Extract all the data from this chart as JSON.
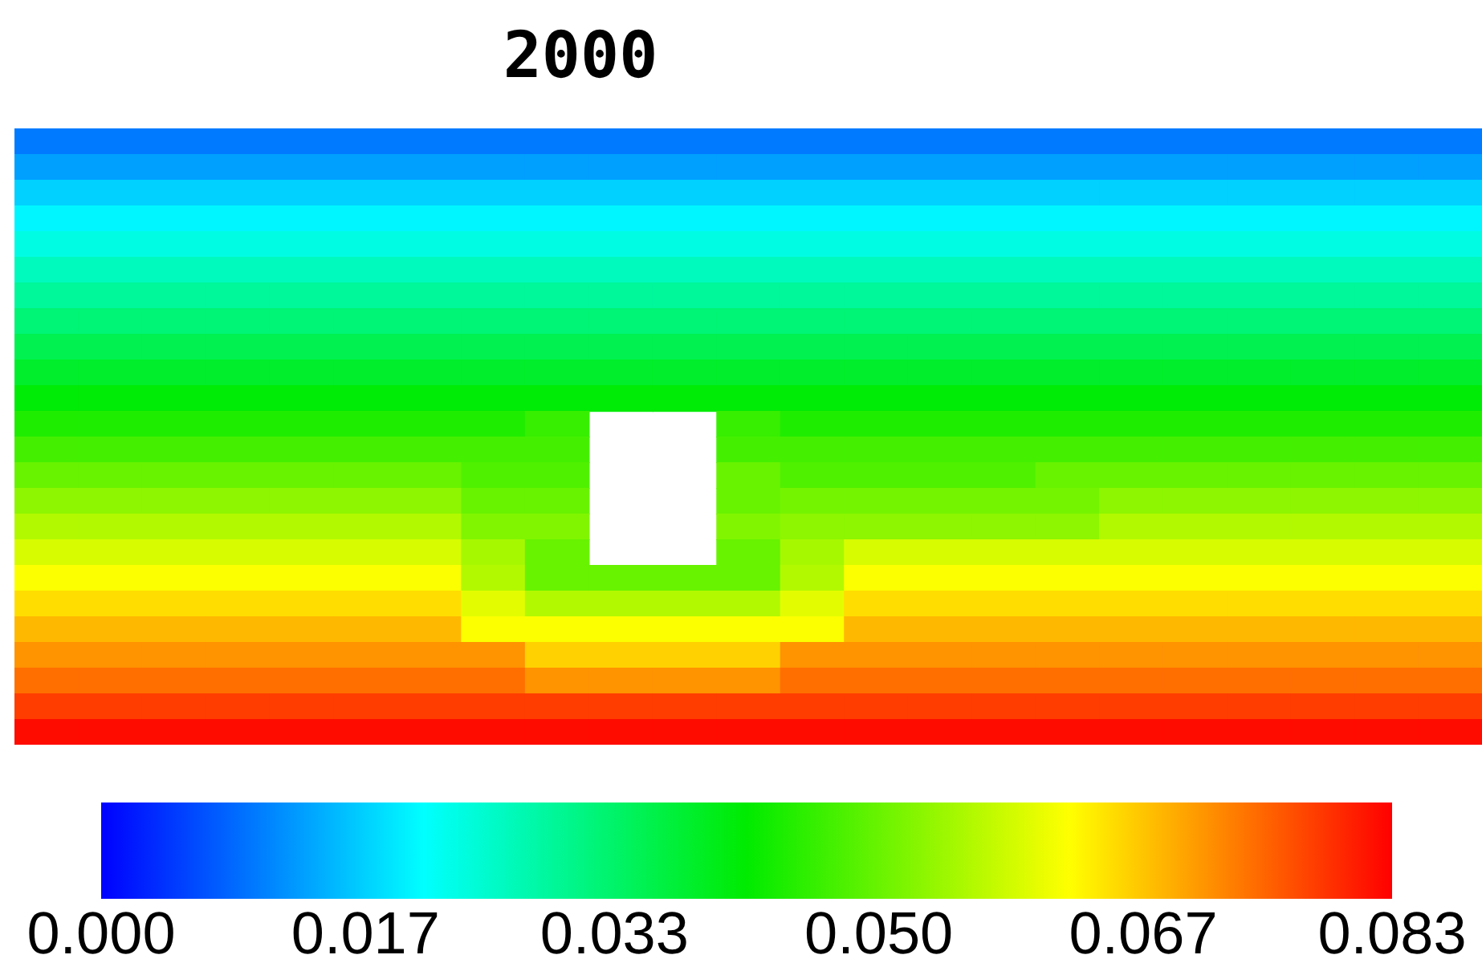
{
  "chart_data": {
    "type": "heatmap",
    "title": "2000",
    "tick_labels": false,
    "categories": [
      null,
      null,
      null,
      null,
      null,
      null,
      null,
      null,
      null,
      null,
      null,
      null,
      null,
      null,
      null,
      null,
      null,
      null,
      null,
      null,
      null,
      null,
      null
    ],
    "y_categories": [
      null,
      null,
      null,
      null,
      null,
      null,
      null,
      null,
      null,
      null,
      null,
      null,
      null,
      null,
      null,
      null,
      null,
      null,
      null,
      null,
      null,
      null,
      null,
      null
    ],
    "cells": [
      [
        0.01,
        0.01,
        0.01,
        0.01,
        0.01,
        0.01,
        0.01,
        0.01,
        0.01,
        0.01,
        0.01,
        0.01,
        0.01,
        0.01,
        0.01,
        0.01,
        0.01,
        0.01,
        0.01,
        0.01,
        0.01,
        0.01,
        0.01
      ],
      [
        0.013,
        0.013,
        0.013,
        0.013,
        0.013,
        0.013,
        0.013,
        0.013,
        0.013,
        0.013,
        0.013,
        0.013,
        0.013,
        0.013,
        0.013,
        0.013,
        0.013,
        0.013,
        0.013,
        0.013,
        0.013,
        0.013,
        0.013
      ],
      [
        0.017,
        0.017,
        0.017,
        0.017,
        0.017,
        0.017,
        0.017,
        0.017,
        0.017,
        0.017,
        0.017,
        0.017,
        0.017,
        0.017,
        0.017,
        0.017,
        0.017,
        0.017,
        0.017,
        0.017,
        0.017,
        0.017,
        0.017
      ],
      [
        0.02,
        0.02,
        0.02,
        0.02,
        0.02,
        0.02,
        0.02,
        0.02,
        0.02,
        0.02,
        0.02,
        0.02,
        0.02,
        0.02,
        0.02,
        0.02,
        0.02,
        0.02,
        0.02,
        0.02,
        0.02,
        0.02,
        0.02
      ],
      [
        0.023,
        0.023,
        0.023,
        0.023,
        0.023,
        0.023,
        0.023,
        0.023,
        0.023,
        0.023,
        0.023,
        0.023,
        0.023,
        0.023,
        0.023,
        0.023,
        0.023,
        0.023,
        0.023,
        0.023,
        0.023,
        0.023,
        0.023
      ],
      [
        0.026,
        0.026,
        0.026,
        0.026,
        0.026,
        0.026,
        0.026,
        0.026,
        0.026,
        0.026,
        0.026,
        0.026,
        0.026,
        0.026,
        0.026,
        0.026,
        0.026,
        0.026,
        0.026,
        0.026,
        0.026,
        0.026,
        0.026
      ],
      [
        0.029,
        0.029,
        0.029,
        0.029,
        0.029,
        0.029,
        0.029,
        0.029,
        0.029,
        0.029,
        0.029,
        0.029,
        0.029,
        0.029,
        0.029,
        0.029,
        0.029,
        0.029,
        0.029,
        0.029,
        0.029,
        0.029,
        0.029
      ],
      [
        0.032,
        0.032,
        0.032,
        0.032,
        0.032,
        0.032,
        0.032,
        0.032,
        0.032,
        0.032,
        0.032,
        0.032,
        0.032,
        0.032,
        0.032,
        0.032,
        0.032,
        0.032,
        0.032,
        0.032,
        0.032,
        0.032,
        0.032
      ],
      [
        0.035,
        0.035,
        0.035,
        0.035,
        0.035,
        0.035,
        0.035,
        0.035,
        0.035,
        0.035,
        0.035,
        0.035,
        0.035,
        0.035,
        0.035,
        0.035,
        0.035,
        0.035,
        0.035,
        0.035,
        0.035,
        0.035,
        0.035
      ],
      [
        0.038,
        0.038,
        0.038,
        0.038,
        0.038,
        0.038,
        0.038,
        0.038,
        0.038,
        0.038,
        0.038,
        0.038,
        0.038,
        0.038,
        0.038,
        0.038,
        0.038,
        0.038,
        0.038,
        0.038,
        0.038,
        0.038,
        0.038
      ],
      [
        0.041,
        0.041,
        0.041,
        0.041,
        0.041,
        0.041,
        0.041,
        0.041,
        0.041,
        0.041,
        0.041,
        0.041,
        0.041,
        0.041,
        0.041,
        0.041,
        0.041,
        0.041,
        0.041,
        0.041,
        0.041,
        0.041,
        0.041
      ],
      [
        0.044,
        0.044,
        0.044,
        0.044,
        0.044,
        0.044,
        0.044,
        0.044,
        0.046,
        null,
        null,
        0.046,
        0.044,
        0.044,
        0.044,
        0.044,
        0.044,
        0.044,
        0.044,
        0.044,
        0.044,
        0.044,
        0.044
      ],
      [
        0.047,
        0.047,
        0.047,
        0.047,
        0.047,
        0.047,
        0.047,
        0.047,
        0.047,
        null,
        null,
        0.047,
        0.047,
        0.047,
        0.047,
        0.047,
        0.047,
        0.047,
        0.047,
        0.047,
        0.047,
        0.047,
        0.047
      ],
      [
        0.05,
        0.05,
        0.05,
        0.05,
        0.05,
        0.05,
        0.05,
        0.048,
        0.048,
        null,
        null,
        0.05,
        0.048,
        0.048,
        0.048,
        0.048,
        0.05,
        0.05,
        0.05,
        0.05,
        0.05,
        0.05,
        0.05
      ],
      [
        0.053,
        0.053,
        0.053,
        0.053,
        0.053,
        0.053,
        0.053,
        0.05,
        0.05,
        null,
        null,
        0.05,
        0.051,
        0.051,
        0.051,
        0.051,
        0.051,
        0.053,
        0.053,
        0.053,
        0.053,
        0.053,
        0.053
      ],
      [
        0.056,
        0.056,
        0.056,
        0.056,
        0.056,
        0.056,
        0.056,
        0.052,
        0.052,
        null,
        null,
        0.052,
        0.053,
        0.053,
        0.053,
        0.053,
        0.053,
        0.056,
        0.056,
        0.056,
        0.056,
        0.056,
        0.056
      ],
      [
        0.059,
        0.059,
        0.059,
        0.059,
        0.059,
        0.059,
        0.059,
        0.055,
        0.05,
        null,
        null,
        0.05,
        0.055,
        0.059,
        0.059,
        0.059,
        0.059,
        0.059,
        0.059,
        0.059,
        0.059,
        0.059,
        0.059
      ],
      [
        0.062,
        0.062,
        0.062,
        0.062,
        0.062,
        0.062,
        0.062,
        0.056,
        0.05,
        0.05,
        0.05,
        0.05,
        0.056,
        0.062,
        0.062,
        0.062,
        0.062,
        0.062,
        0.062,
        0.062,
        0.062,
        0.062,
        0.062
      ],
      [
        0.065,
        0.065,
        0.065,
        0.065,
        0.065,
        0.065,
        0.065,
        0.06,
        0.056,
        0.056,
        0.056,
        0.056,
        0.06,
        0.065,
        0.065,
        0.065,
        0.065,
        0.065,
        0.065,
        0.065,
        0.065,
        0.065,
        0.065
      ],
      [
        0.068,
        0.068,
        0.068,
        0.068,
        0.068,
        0.068,
        0.068,
        0.062,
        0.062,
        0.062,
        0.062,
        0.062,
        0.062,
        0.068,
        0.068,
        0.068,
        0.068,
        0.068,
        0.068,
        0.068,
        0.068,
        0.068,
        0.068
      ],
      [
        0.071,
        0.071,
        0.071,
        0.071,
        0.071,
        0.071,
        0.071,
        0.071,
        0.066,
        0.066,
        0.066,
        0.066,
        0.071,
        0.071,
        0.071,
        0.071,
        0.071,
        0.071,
        0.071,
        0.071,
        0.071,
        0.071,
        0.071
      ],
      [
        0.074,
        0.074,
        0.074,
        0.074,
        0.074,
        0.074,
        0.074,
        0.074,
        0.071,
        0.071,
        0.071,
        0.071,
        0.074,
        0.074,
        0.074,
        0.074,
        0.074,
        0.074,
        0.074,
        0.074,
        0.074,
        0.074,
        0.074
      ],
      [
        0.078,
        0.078,
        0.078,
        0.078,
        0.078,
        0.078,
        0.078,
        0.078,
        0.078,
        0.078,
        0.078,
        0.078,
        0.078,
        0.078,
        0.078,
        0.078,
        0.078,
        0.078,
        0.078,
        0.078,
        0.078,
        0.078,
        0.078
      ],
      [
        0.082,
        0.082,
        0.082,
        0.082,
        0.082,
        0.082,
        0.082,
        0.082,
        0.082,
        0.082,
        0.082,
        0.082,
        0.082,
        0.082,
        0.082,
        0.082,
        0.082,
        0.082,
        0.082,
        0.082,
        0.082,
        0.082,
        0.082
      ]
    ],
    "clim": [
      0,
      0.083
    ],
    "cticks": [
      {
        "value": 0,
        "label": "0.000"
      },
      {
        "value": 0.017,
        "label": "0.017"
      },
      {
        "value": 0.033,
        "label": "0.033"
      },
      {
        "value": 0.05,
        "label": "0.050"
      },
      {
        "value": 0.067,
        "label": "0.067"
      },
      {
        "value": 0.083,
        "label": "0.083"
      }
    ]
  }
}
